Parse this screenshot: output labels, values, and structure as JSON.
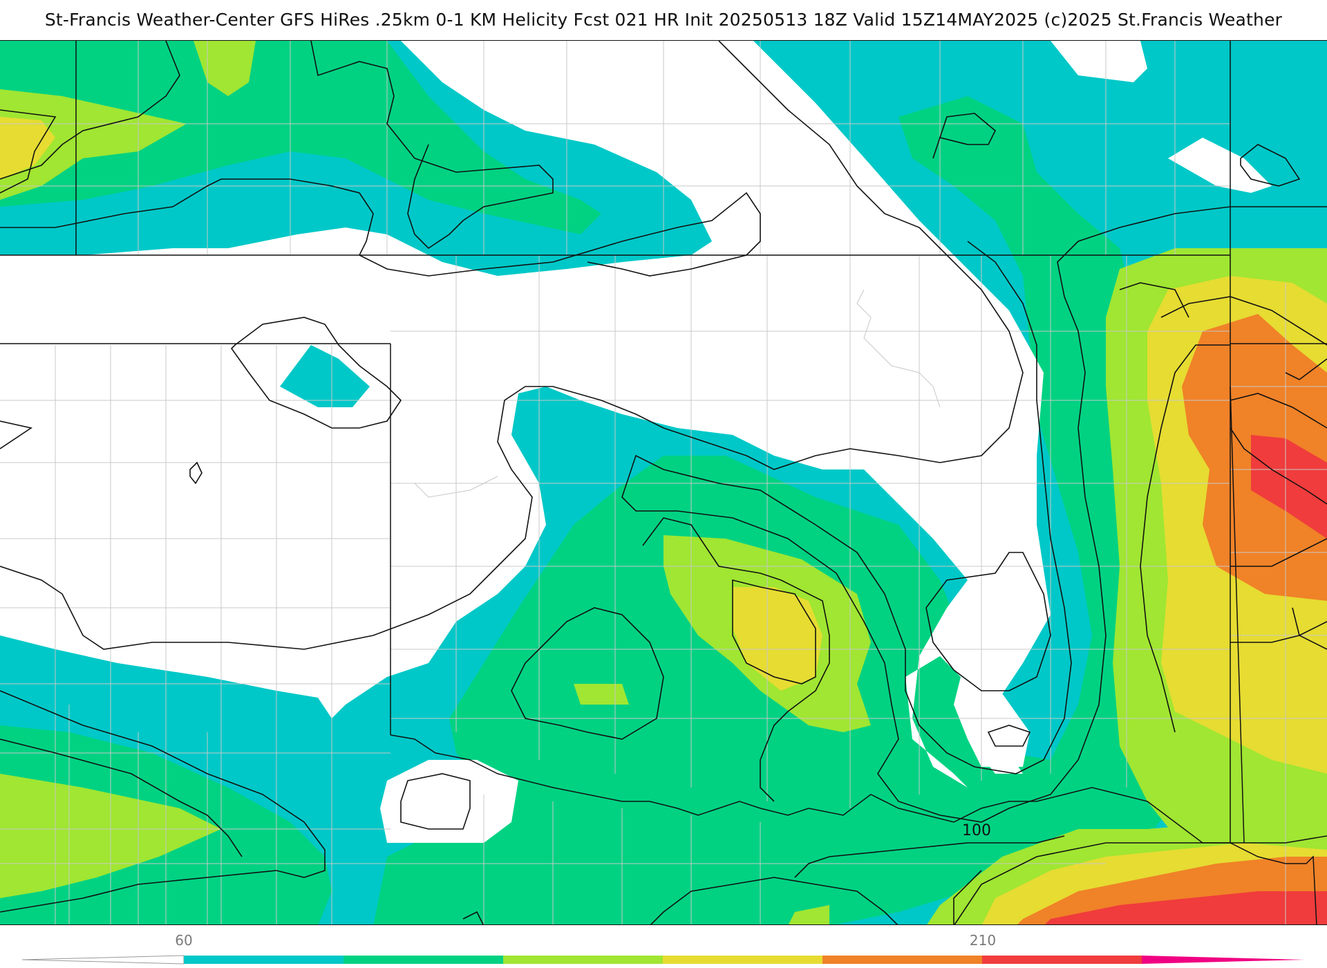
{
  "header": {
    "title": "St-Francis Weather-Center GFS HiRes .25km 0-1 KM Helicity Fcst 021 HR Init 20250513 18Z  Valid 15Z14MAY2025    (c)2025 St.Francis Weather"
  },
  "map": {
    "contour_labels": [
      "100"
    ]
  },
  "colorbar": {
    "tick_labels": [
      "60",
      "210"
    ],
    "colors": [
      "#ffffff",
      "#00c8c8",
      "#00d282",
      "#a0e632",
      "#e6dc32",
      "#f08228",
      "#f03c3c",
      "#f00082"
    ]
  }
}
